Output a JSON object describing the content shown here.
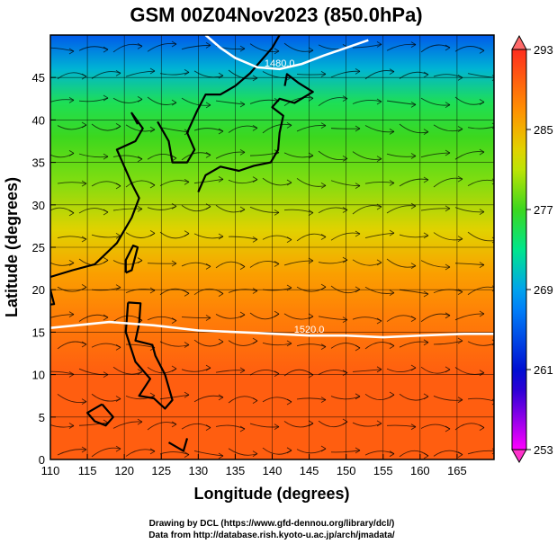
{
  "chart_data": {
    "type": "heatmap",
    "title": "GSM 00Z04Nov2023 (850.0hPa)",
    "xlabel": "Longitude (degrees)",
    "ylabel": "Latitude  (degrees)",
    "xlim": [
      110,
      170
    ],
    "ylim": [
      0,
      50
    ],
    "x_ticks": [
      "110",
      "115",
      "120",
      "125",
      "130",
      "135",
      "140",
      "145",
      "150",
      "155",
      "160",
      "165"
    ],
    "y_ticks": [
      "0",
      "5",
      "10",
      "15",
      "20",
      "25",
      "30",
      "35",
      "40",
      "45"
    ],
    "colorbar": {
      "min": 253,
      "max": 293,
      "ticks": [
        "253",
        "261",
        "269",
        "277",
        "285",
        "293"
      ]
    },
    "temperature_bands": [
      {
        "lat": 0,
        "value": 290
      },
      {
        "lat": 10,
        "value": 290
      },
      {
        "lat": 17,
        "value": 288
      },
      {
        "lat": 22,
        "value": 286
      },
      {
        "lat": 27,
        "value": 283
      },
      {
        "lat": 33,
        "value": 279
      },
      {
        "lat": 38,
        "value": 277
      },
      {
        "lat": 42,
        "value": 275
      },
      {
        "lat": 46,
        "value": 270
      },
      {
        "lat": 50,
        "value": 265
      }
    ],
    "contours": [
      {
        "label": "1520.0",
        "points": [
          [
            110,
            15.5
          ],
          [
            118,
            16.2
          ],
          [
            124,
            15.8
          ],
          [
            130,
            15.2
          ],
          [
            138,
            14.9
          ],
          [
            145,
            14.6
          ],
          [
            150,
            14.6
          ],
          [
            155,
            14.4
          ],
          [
            160,
            14.6
          ],
          [
            166,
            14.8
          ],
          [
            170,
            14.8
          ]
        ]
      },
      {
        "label": "1480.0",
        "points": [
          [
            131,
            50
          ],
          [
            133,
            48.5
          ],
          [
            135,
            47.3
          ],
          [
            138,
            46.2
          ],
          [
            141,
            46
          ],
          [
            144,
            46.6
          ],
          [
            147,
            47.6
          ],
          [
            150,
            48.5
          ],
          [
            153,
            49.4
          ]
        ]
      }
    ]
  },
  "footer": {
    "credit_line1": "Drawing by DCL (https://www.gfd-dennou.org/library/dcl/)",
    "credit_line2": "Data from http://database.rish.kyoto-u.ac.jp/arch/jmadata/"
  }
}
